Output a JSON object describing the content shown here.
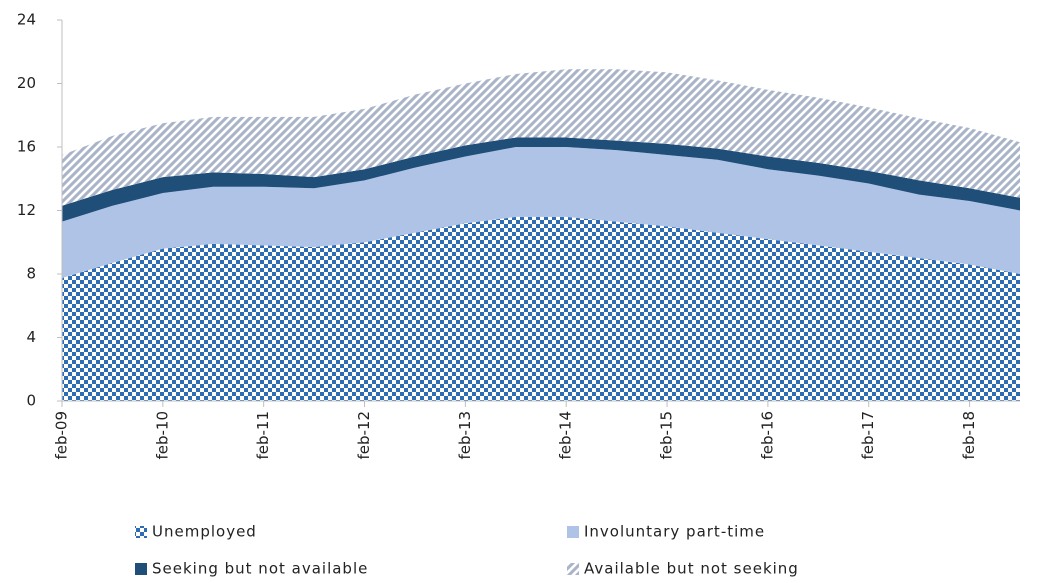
{
  "chart_data": {
    "type": "stacked-area",
    "categories": [
      "feb-09",
      null,
      "feb-10",
      null,
      "feb-11",
      null,
      "feb-12",
      null,
      "feb-13",
      null,
      "feb-14",
      null,
      "feb-15",
      null,
      "feb-16",
      null,
      "feb-17",
      null,
      "feb-18",
      null
    ],
    "series": [
      {
        "name": "Unemployed",
        "color": "#2e6db4",
        "values": [
          7.75,
          8.7,
          9.6,
          9.9,
          9.8,
          9.7,
          10.0,
          10.6,
          11.2,
          11.6,
          11.6,
          11.3,
          11.0,
          10.6,
          10.2,
          9.8,
          9.4,
          9.0,
          8.6,
          8.0
        ]
      },
      {
        "name": "Involuntary part-time",
        "color": "#aec3e6",
        "values": [
          3.55,
          3.6,
          3.5,
          3.6,
          3.7,
          3.7,
          3.9,
          4.1,
          4.2,
          4.4,
          4.4,
          4.5,
          4.5,
          4.6,
          4.4,
          4.4,
          4.3,
          4.0,
          4.0,
          4.0
        ]
      },
      {
        "name": "Seeking but not available",
        "color": "#1f4e79",
        "values": [
          1.0,
          1.0,
          1.0,
          0.9,
          0.8,
          0.7,
          0.7,
          0.7,
          0.7,
          0.6,
          0.6,
          0.6,
          0.7,
          0.7,
          0.8,
          0.8,
          0.8,
          0.9,
          0.8,
          0.8
        ]
      },
      {
        "name": "Available but not seeking",
        "color": "#a9b4c9",
        "values": [
          3.2,
          3.4,
          3.4,
          3.5,
          3.6,
          3.8,
          3.8,
          3.9,
          3.9,
          4.0,
          4.3,
          4.5,
          4.5,
          4.3,
          4.2,
          4.1,
          4.0,
          3.9,
          3.8,
          3.5
        ]
      }
    ],
    "ylim": [
      0,
      24
    ],
    "yticks": [
      0,
      4,
      8,
      12,
      16,
      20,
      24
    ]
  }
}
